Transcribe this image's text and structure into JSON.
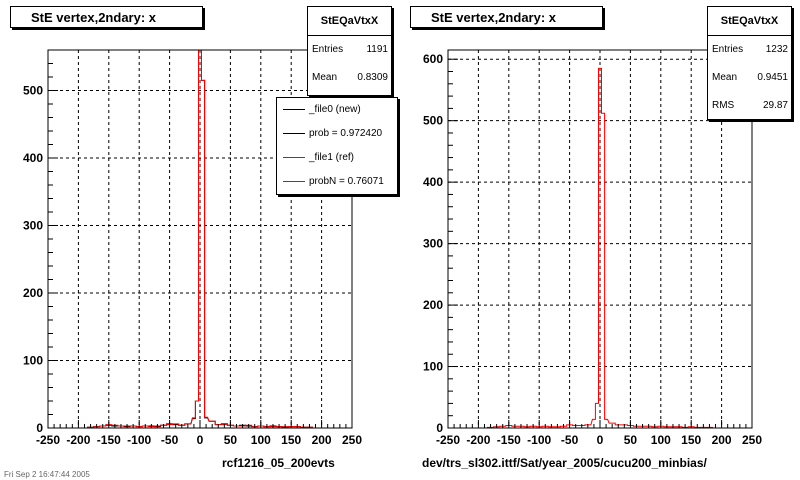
{
  "left": {
    "title": "StE  vertex,2ndary: x",
    "stats": {
      "name": "StEQaVtxX",
      "rows": [
        {
          "label": "Entries",
          "value": "1191"
        },
        {
          "label": "Mean",
          "value": "0.8309"
        }
      ]
    },
    "legend": [
      {
        "label": "_file0 (new)",
        "color": "#000000"
      },
      {
        "label": "prob = 0.972420",
        "color": "#000000"
      },
      {
        "label": "_file1 (ref)",
        "color": "#ff0000"
      },
      {
        "label": "probN = 0.76071",
        "color": "#ff0000"
      }
    ],
    "subtitle": "rcf1216_05_200evts"
  },
  "right": {
    "title": "StE  vertex,2ndary: x",
    "stats": {
      "name": "StEQaVtxX",
      "rows": [
        {
          "label": "Entries",
          "value": "1232"
        },
        {
          "label": "Mean",
          "value": "0.9451"
        },
        {
          "label": "RMS",
          "value": "29.87"
        }
      ]
    },
    "subtitle": "dev/trs_sl302.ittf/Sat/year_2005/cucu200_minbias/"
  },
  "corner_text": "Fri Sep  2 16:47:44 2005",
  "chart_data": [
    {
      "type": "line",
      "title": "StE  vertex,2ndary: x",
      "xlim": [
        -250,
        250
      ],
      "ylim": [
        0,
        560
      ],
      "xticks": [
        -250,
        -200,
        -150,
        -100,
        -50,
        0,
        50,
        100,
        150,
        200,
        250
      ],
      "yticks": [
        0,
        100,
        200,
        300,
        400,
        500
      ],
      "grid": true,
      "legend_position": "top-right",
      "bin_width": 10,
      "x": [
        -240,
        -230,
        -220,
        -210,
        -200,
        -190,
        -180,
        -170,
        -160,
        -150,
        -140,
        -130,
        -120,
        -110,
        -100,
        -90,
        -80,
        -70,
        -60,
        -50,
        -40,
        -30,
        -20,
        -10,
        -5,
        0,
        5,
        10,
        20,
        30,
        40,
        50,
        60,
        70,
        80,
        90,
        100,
        110,
        120,
        130,
        140,
        150,
        160,
        170,
        180,
        190,
        200,
        210,
        220,
        230,
        240
      ],
      "series": [
        {
          "name": "_file0 (new)",
          "color": "#000000",
          "values": [
            0,
            0,
            0,
            0,
            0,
            0,
            1,
            2,
            3,
            4,
            3,
            3,
            2,
            3,
            2,
            3,
            3,
            2,
            4,
            6,
            5,
            4,
            6,
            14,
            40,
            560,
            515,
            15,
            10,
            5,
            6,
            4,
            3,
            4,
            3,
            2,
            3,
            2,
            3,
            2,
            1,
            2,
            2,
            1,
            1,
            0,
            0,
            0,
            0,
            0,
            0
          ]
        },
        {
          "name": "_file1 (ref)",
          "color": "#ff0000",
          "values": [
            0,
            0,
            0,
            0,
            0,
            0,
            1,
            2,
            3,
            5,
            4,
            3,
            3,
            3,
            2,
            3,
            2,
            3,
            4,
            5,
            6,
            4,
            6,
            15,
            40,
            560,
            515,
            16,
            10,
            5,
            5,
            4,
            3,
            3,
            4,
            2,
            3,
            2,
            2,
            2,
            2,
            2,
            2,
            1,
            1,
            0,
            0,
            0,
            0,
            0,
            0
          ]
        }
      ]
    },
    {
      "type": "line",
      "title": "StE  vertex,2ndary: x",
      "xlim": [
        -250,
        250
      ],
      "ylim": [
        0,
        615
      ],
      "xticks": [
        -250,
        -200,
        -150,
        -100,
        -50,
        0,
        50,
        100,
        150,
        200,
        250
      ],
      "yticks": [
        0,
        100,
        200,
        300,
        400,
        500,
        600
      ],
      "grid": true,
      "bin_width": 10,
      "x": [
        -240,
        -230,
        -220,
        -210,
        -200,
        -190,
        -180,
        -170,
        -160,
        -150,
        -140,
        -130,
        -120,
        -110,
        -100,
        -90,
        -80,
        -70,
        -60,
        -50,
        -40,
        -30,
        -20,
        -10,
        -5,
        0,
        5,
        10,
        20,
        30,
        40,
        50,
        60,
        70,
        80,
        90,
        100,
        110,
        120,
        130,
        140,
        150,
        160,
        170,
        180,
        190,
        200,
        210,
        220,
        230,
        240
      ],
      "series": [
        {
          "name": "StEQaVtxX",
          "color": "#ff0000",
          "values": [
            0,
            0,
            0,
            0,
            0,
            0,
            1,
            2,
            3,
            4,
            3,
            3,
            2,
            3,
            2,
            3,
            2,
            2,
            3,
            5,
            4,
            4,
            5,
            14,
            40,
            585,
            512,
            14,
            8,
            5,
            5,
            4,
            3,
            3,
            3,
            2,
            3,
            2,
            2,
            2,
            1,
            2,
            1,
            1,
            1,
            0,
            0,
            0,
            0,
            0,
            0
          ]
        }
      ]
    }
  ]
}
